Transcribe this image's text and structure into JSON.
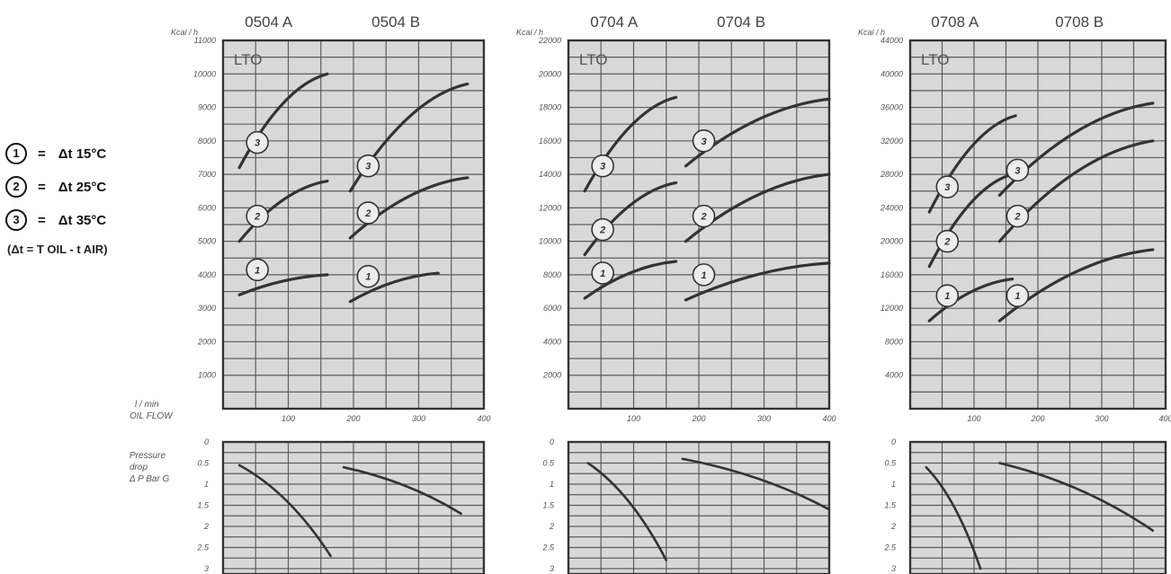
{
  "legend": {
    "items": [
      {
        "num": "1",
        "eq": "=",
        "text": "Δt 15°C"
      },
      {
        "num": "2",
        "eq": "=",
        "text": "Δt 25°C"
      },
      {
        "num": "3",
        "eq": "=",
        "text": "Δt 35°C"
      }
    ],
    "note": "(Δt =  T OIL - t AIR)"
  },
  "side_labels": {
    "flow": [
      "l / min",
      "OIL  FLOW"
    ],
    "pressure": [
      "Pressure",
      "drop",
      "Δ P Bar G"
    ]
  },
  "chart_data": [
    {
      "type": "line",
      "models": [
        "0504 A",
        "0504 B"
      ],
      "region_label": "LTO",
      "ytitle": "Kcal / h",
      "y_ticks": [
        "11000",
        "10000",
        "9000",
        "8000",
        "7000",
        "6000",
        "5000",
        "4000",
        "3000",
        "2000",
        "1000"
      ],
      "ylim": [
        0,
        11000
      ],
      "x_ticks": [
        "100",
        "200",
        "300",
        "400"
      ],
      "xlim": [
        0,
        400
      ],
      "series": [
        {
          "label": "3",
          "x": [
            25,
            160
          ],
          "y": [
            7200,
            10000
          ]
        },
        {
          "label": "2",
          "x": [
            25,
            160
          ],
          "y": [
            5000,
            6800
          ]
        },
        {
          "label": "1",
          "x": [
            25,
            160
          ],
          "y": [
            3400,
            4000
          ]
        },
        {
          "label": "3",
          "x": [
            195,
            375
          ],
          "y": [
            6500,
            9700
          ]
        },
        {
          "label": "2",
          "x": [
            195,
            375
          ],
          "y": [
            5100,
            6900
          ]
        },
        {
          "label": "1",
          "x": [
            195,
            330
          ],
          "y": [
            3200,
            4050
          ]
        }
      ],
      "pressure": {
        "y_ticks": [
          "0",
          "0.5",
          "1",
          "1.5",
          "2",
          "2.5",
          "3"
        ],
        "ylim": [
          0,
          3
        ],
        "series": [
          {
            "x": [
              25,
              165
            ],
            "y": [
              0.55,
              2.7
            ]
          },
          {
            "x": [
              185,
              365
            ],
            "y": [
              0.6,
              1.7
            ]
          }
        ]
      }
    },
    {
      "type": "line",
      "models": [
        "0704 A",
        "0704 B"
      ],
      "region_label": "LTO",
      "ytitle": "Kcal / h",
      "y_ticks": [
        "22000",
        "20000",
        "18000",
        "16000",
        "14000",
        "12000",
        "10000",
        "8000",
        "6000",
        "4000",
        "2000"
      ],
      "ylim": [
        0,
        22000
      ],
      "x_ticks": [
        "100",
        "200",
        "300",
        "400"
      ],
      "xlim": [
        0,
        400
      ],
      "series": [
        {
          "label": "3",
          "x": [
            25,
            165
          ],
          "y": [
            13000,
            18600
          ]
        },
        {
          "label": "2",
          "x": [
            25,
            165
          ],
          "y": [
            9200,
            13500
          ]
        },
        {
          "label": "1",
          "x": [
            25,
            165
          ],
          "y": [
            6600,
            8800
          ]
        },
        {
          "label": "3",
          "x": [
            180,
            400
          ],
          "y": [
            14500,
            18500
          ]
        },
        {
          "label": "2",
          "x": [
            180,
            400
          ],
          "y": [
            10000,
            14000
          ]
        },
        {
          "label": "1",
          "x": [
            180,
            400
          ],
          "y": [
            6500,
            8700
          ]
        }
      ],
      "pressure": {
        "y_ticks": [
          "0",
          "0.5",
          "1",
          "1.5",
          "2",
          "2.5",
          "3"
        ],
        "ylim": [
          0,
          3
        ],
        "series": [
          {
            "x": [
              30,
              150
            ],
            "y": [
              0.5,
              2.8
            ]
          },
          {
            "x": [
              175,
              400
            ],
            "y": [
              0.4,
              1.6
            ]
          }
        ]
      }
    },
    {
      "type": "line",
      "models": [
        "0708 A",
        "0708 B"
      ],
      "region_label": "LTO",
      "ytitle": "Kcal / h",
      "y_ticks": [
        "44000",
        "40000",
        "36000",
        "32000",
        "28000",
        "24000",
        "20000",
        "16000",
        "12000",
        "8000",
        "4000"
      ],
      "ylim": [
        0,
        44000
      ],
      "x_ticks": [
        "100",
        "200",
        "300",
        "400"
      ],
      "xlim": [
        0,
        400
      ],
      "series": [
        {
          "label": "3",
          "x": [
            30,
            165
          ],
          "y": [
            23500,
            35000
          ]
        },
        {
          "label": "2",
          "x": [
            30,
            160
          ],
          "y": [
            17000,
            28000
          ]
        },
        {
          "label": "1",
          "x": [
            30,
            160
          ],
          "y": [
            10500,
            15500
          ]
        },
        {
          "label": "3",
          "x": [
            140,
            380
          ],
          "y": [
            25500,
            36500
          ]
        },
        {
          "label": "2",
          "x": [
            140,
            380
          ],
          "y": [
            20000,
            32000
          ]
        },
        {
          "label": "1",
          "x": [
            140,
            380
          ],
          "y": [
            10500,
            19000
          ]
        }
      ],
      "pressure": {
        "y_ticks": [
          "0",
          "0.5",
          "1",
          "1.5",
          "2",
          "2.5",
          "3"
        ],
        "ylim": [
          0,
          3
        ],
        "series": [
          {
            "x": [
              25,
              110
            ],
            "y": [
              0.6,
              3.0
            ]
          },
          {
            "x": [
              140,
              380
            ],
            "y": [
              0.5,
              2.1
            ]
          }
        ]
      }
    }
  ]
}
